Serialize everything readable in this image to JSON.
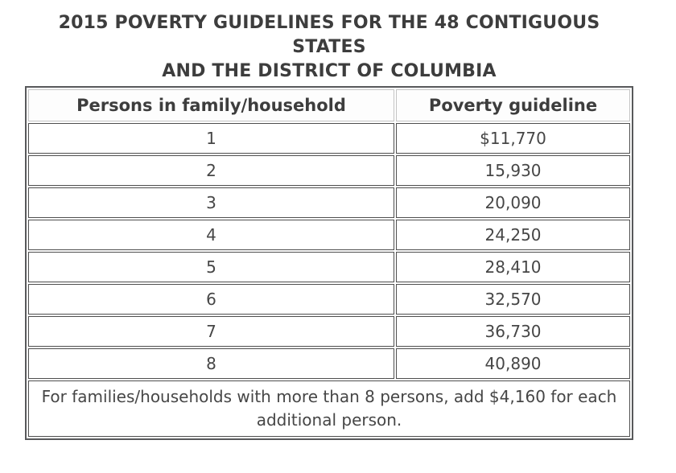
{
  "display": {
    "title_lines": [
      "2015 POVERTY GUIDELINES FOR THE 48 CONTIGUOUS",
      "STATES",
      "AND THE DISTRICT OF COLUMBIA"
    ]
  },
  "chart_data": {
    "type": "table",
    "title": "2015 POVERTY GUIDELINES FOR THE 48 CONTIGUOUS STATES AND THE DISTRICT OF COLUMBIA",
    "columns": [
      "Persons in family/household",
      "Poverty guideline"
    ],
    "rows": [
      [
        "1",
        "$11,770"
      ],
      [
        "2",
        "15,930"
      ],
      [
        "3",
        "20,090"
      ],
      [
        "4",
        "24,250"
      ],
      [
        "5",
        "28,410"
      ],
      [
        "6",
        "32,570"
      ],
      [
        "7",
        "36,730"
      ],
      [
        "8",
        "40,890"
      ]
    ],
    "persons": [
      1,
      2,
      3,
      4,
      5,
      6,
      7,
      8
    ],
    "guideline_values_usd": [
      11770,
      15930,
      20090,
      24250,
      28410,
      32570,
      36730,
      40890
    ],
    "additional_person_amount_usd": 4160,
    "footnote": "For families/households with more than 8 persons, add $4,160 for each additional person."
  },
  "colors": {
    "text": "#3d3d3d",
    "body_text": "#464646",
    "outer_border": "#58595b",
    "cell_border": "#4e4e4e",
    "header_cell_border": "#c4c4c4",
    "background": "#ffffff"
  }
}
